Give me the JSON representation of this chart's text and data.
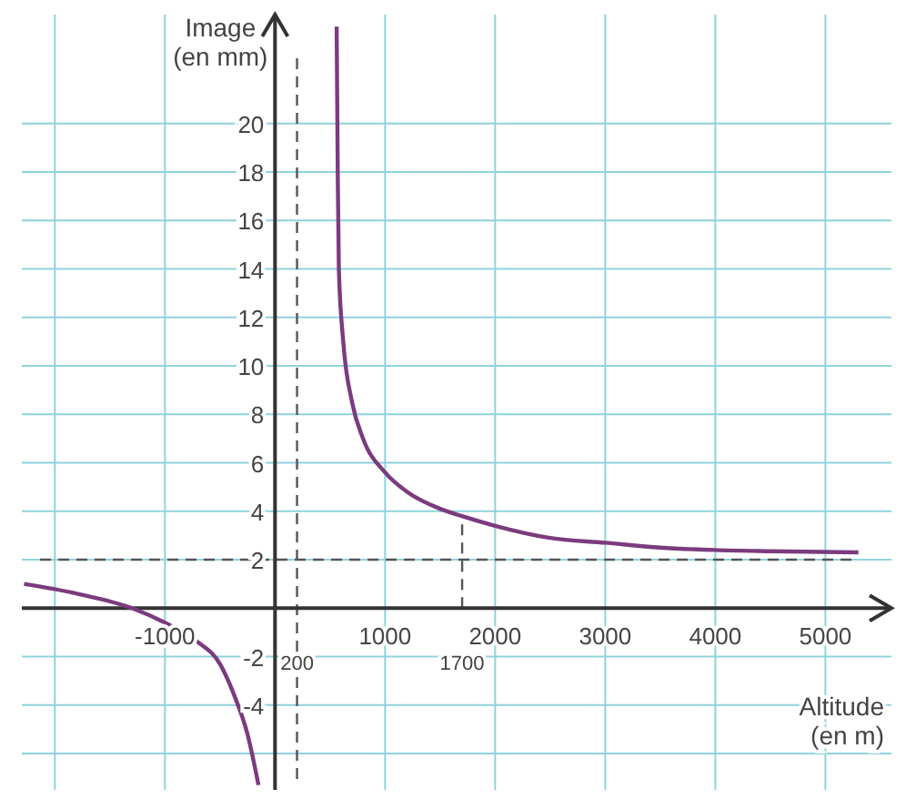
{
  "chart_data": {
    "type": "line",
    "xlabel": "Altitude\n(en m)",
    "ylabel": "Image\n(en mm)",
    "xlim": [
      -2300,
      5600
    ],
    "ylim": [
      -7.5,
      24.5
    ],
    "xticks": [
      {
        "value": -2000,
        "label": null
      },
      -1000,
      1000,
      2000,
      3000,
      4000,
      5000
    ],
    "yticks": [
      {
        "value": -6,
        "label": null
      },
      -4,
      -2,
      2,
      4,
      6,
      8,
      10,
      12,
      14,
      16,
      18,
      20
    ],
    "grid": true,
    "marker": "none",
    "line_style": "solid",
    "series": [
      {
        "color": "#7b3b7e",
        "x": [
          -2280,
          -1800,
          -1300,
          -1000,
          -700,
          -500,
          -370,
          -250,
          -150,
          200,
          560,
          570,
          580,
          620,
          700,
          800,
          1000,
          1200,
          1500,
          1700,
          2000,
          2500,
          3000,
          3500,
          4000,
          4500,
          5300
        ],
        "values": [
          1.0,
          0.6,
          0,
          -0.6,
          -1.4,
          -2.3,
          -3.6,
          -5.2,
          -7.3,
          null,
          24,
          18,
          14,
          11,
          8.5,
          7,
          5.6,
          4.8,
          4.1,
          3.8,
          3.4,
          2.9,
          2.7,
          2.5,
          2.4,
          2.35,
          2.3
        ]
      }
    ],
    "ref_lines": [
      {
        "axis": "x",
        "value": 200,
        "label": "200",
        "line_style": "dashed"
      },
      {
        "axis": "x",
        "value": 1700,
        "label": "1700",
        "line_style": "dashed"
      },
      {
        "axis": "y",
        "value": 2,
        "label": null,
        "line_style": "dashed"
      }
    ]
  }
}
